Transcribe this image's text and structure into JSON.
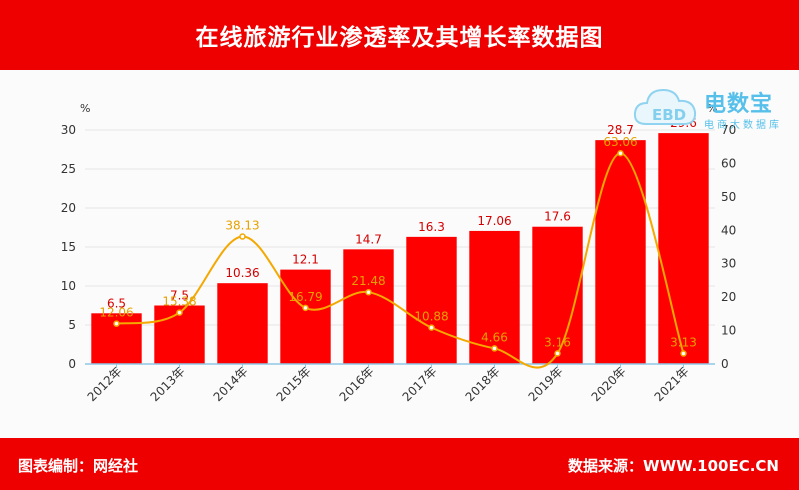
{
  "header": {
    "title": "在线旅游行业渗透率及其增长率数据图"
  },
  "footer": {
    "left": "图表编制：网经社",
    "right": "数据来源：WWW.100EC.CN"
  },
  "watermark": {
    "brand": "电数宝",
    "sub": "电商大数据库",
    "logo_text": "EBD"
  },
  "chart_data": {
    "type": "bar",
    "categories": [
      "2012年",
      "2013年",
      "2014年",
      "2015年",
      "2016年",
      "2017年",
      "2018年",
      "2019年",
      "2020年",
      "2021年"
    ],
    "series": [
      {
        "type": "bar",
        "axis": "left",
        "color": "#ff0000",
        "label_color": "#d40000",
        "values": [
          6.5,
          7.5,
          10.36,
          12.1,
          14.7,
          16.3,
          17.06,
          17.6,
          28.7,
          29.6
        ]
      },
      {
        "type": "line",
        "axis": "right",
        "color": "#f4a800",
        "label_color": "#e6a200",
        "values": [
          12.06,
          15.38,
          38.13,
          16.79,
          21.48,
          10.88,
          4.66,
          3.16,
          63.06,
          3.13
        ]
      }
    ],
    "y_left": {
      "label": "%",
      "ylim": [
        0,
        30
      ],
      "ticks": [
        0,
        5,
        10,
        15,
        20,
        25,
        30
      ]
    },
    "y_right": {
      "label": "%",
      "ylim": [
        0,
        70
      ],
      "ticks": [
        0,
        10,
        20,
        30,
        40,
        50,
        60,
        70
      ]
    },
    "grid": true
  }
}
